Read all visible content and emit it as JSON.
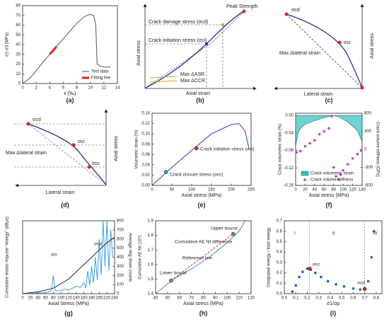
{
  "chart_data": [
    {
      "type": "line",
      "label": "(a)",
      "xlabel": "ε (‰)",
      "ylabel": "σ1-σ3 (MPa)",
      "xlim": [
        0,
        14
      ],
      "xticks": [
        0,
        2,
        4,
        6,
        8,
        10,
        12,
        14
      ],
      "ylim": [
        0,
        80
      ],
      "yticks": [
        0,
        10,
        20,
        30,
        40,
        50,
        60,
        70,
        80
      ],
      "legend": "lower right",
      "series": [
        {
          "name": "Test data",
          "color": "#555555",
          "x": [
            0,
            1,
            2,
            3,
            4,
            5,
            6,
            7,
            8,
            9,
            9.5,
            10,
            10.5,
            10.8,
            11,
            11.5,
            12,
            13
          ],
          "values": [
            0,
            5,
            13,
            22,
            30,
            38,
            46,
            54,
            62,
            68,
            70,
            71,
            70,
            60,
            20,
            18,
            17,
            17
          ]
        },
        {
          "name": "Fitting line",
          "color": "#e02020",
          "width": 3,
          "x": [
            4,
            5
          ],
          "values": [
            30,
            38
          ]
        }
      ]
    },
    {
      "type": "diagram",
      "label": "(b)",
      "texts": [
        "Peak Strength",
        "Crack damage stress (σcd)",
        "Crack initiation stress (σci)",
        "Axial stress",
        "Axial strain",
        "Max ΔASR",
        "Max ΔCCR"
      ]
    },
    {
      "type": "diagram",
      "label": "(c)",
      "texts": [
        "σcd",
        "σci",
        "Max Δlateral strain",
        "Axial stress",
        "Lateral strain"
      ]
    },
    {
      "type": "diagram",
      "label": "(d)",
      "texts": [
        "σcd",
        "σci",
        "σcc",
        "Max Δlateral strain",
        "Axial stress",
        "Lateral strain"
      ]
    },
    {
      "type": "line",
      "label": "(e)",
      "xlabel": "Axial stress (MPa)",
      "ylabel": "Volumetric strain (%)",
      "xlim": [
        0,
        250
      ],
      "xticks": [
        0,
        50,
        100,
        150,
        200,
        250
      ],
      "ylim": [
        0,
        0.14
      ],
      "yticks": [
        {
          "value": 0,
          "label": "0.00"
        },
        0.02,
        0.04,
        0.06,
        0.08,
        {
          "value": 0.1,
          "label": "0.10"
        },
        0.12,
        0.14
      ],
      "series": [
        {
          "color": "#2040c0",
          "x": [
            0,
            50,
            100,
            150,
            200,
            220,
            235,
            245
          ],
          "values": [
            0,
            0.035,
            0.068,
            0.1,
            0.118,
            0.12,
            0.105,
            0.07
          ]
        }
      ],
      "markers": {
        "x": [
          35,
          112
        ],
        "values": [
          0.026,
          0.072
        ],
        "colors": [
          "#20a080",
          "#e02020"
        ]
      },
      "annotations": [
        "Crack initiation stress (σci)",
        "Crack closure stress (σcc)"
      ]
    },
    {
      "type": "line",
      "label": "(f)",
      "xlabel": "Axial stress (MPa)",
      "ylabel": "Crack volumetric strain (%)",
      "y2label": "Crack volume stiffness (GPa)",
      "xlim": [
        0,
        140
      ],
      "xticks": [
        0,
        20,
        40,
        60,
        80,
        100,
        120,
        140
      ],
      "ylim": [
        -0.16,
        0.005
      ],
      "yticks": [
        -0.16,
        -0.12,
        -0.08,
        -0.04,
        {
          "value": 0,
          "label": "0.00"
        }
      ],
      "y2lim": [
        -600,
        600
      ],
      "y2ticks": [
        -600,
        -300,
        0,
        300,
        600
      ],
      "legend": "bottom",
      "series": [
        {
          "name": "Crack volumetric strain",
          "kind": "area",
          "color": "#30c0c0",
          "x": [
            0,
            5,
            10,
            20,
            40,
            60,
            75,
            80,
            90,
            110,
            130,
            140
          ],
          "values": [
            -0.07,
            -0.04,
            -0.03,
            -0.02,
            -0.012,
            -0.005,
            -0.001,
            0,
            -0.003,
            -0.015,
            -0.035,
            -0.06
          ]
        },
        {
          "name": "Crack volume stiffness",
          "kind": "scatter",
          "axis": "y2",
          "color": "#c040c0",
          "x": [
            2,
            10,
            20,
            30,
            40,
            50,
            60,
            70,
            76,
            80,
            85,
            90,
            95,
            100,
            110,
            120,
            130,
            138
          ],
          "values": [
            -50,
            -30,
            50,
            100,
            150,
            250,
            300,
            350,
            550,
            -300,
            -450,
            -500,
            -420,
            -350,
            -250,
            -150,
            -80,
            -20
          ]
        }
      ]
    },
    {
      "type": "line",
      "label": "(g)",
      "xlabel": "Axial Stress (MPa)",
      "ylabel": "Cumulative elastic impulse \"energy\" (dBμs)",
      "y2label": "Average ring down counts",
      "xlim": [
        0,
        240
      ],
      "xticks": [
        0,
        20,
        40,
        60,
        80,
        100,
        120,
        140,
        160,
        180,
        200,
        220,
        240
      ],
      "y2lim": [
        0,
        800
      ],
      "y2ticks": [
        0,
        100,
        200,
        300,
        400,
        500,
        600,
        700,
        800
      ],
      "series": [
        {
          "axis": "y2",
          "color": "#40a0e0",
          "x": [
            0,
            10,
            20,
            30,
            40,
            50,
            60,
            70,
            75,
            80,
            85,
            90,
            100,
            110,
            120,
            130,
            140,
            150,
            160,
            165,
            170,
            175,
            180,
            185,
            190,
            195,
            200,
            205,
            210,
            215,
            220,
            225,
            230,
            235
          ],
          "values": [
            0,
            2,
            3,
            5,
            8,
            10,
            15,
            20,
            30,
            200,
            40,
            30,
            35,
            50,
            40,
            60,
            80,
            70,
            120,
            60,
            250,
            90,
            300,
            120,
            400,
            150,
            600,
            200,
            800,
            300,
            800,
            250,
            700,
            400
          ]
        },
        {
          "axis": "y2",
          "color": "#222222",
          "x": [
            0,
            40,
            80,
            120,
            160,
            180,
            200,
            220,
            240
          ],
          "values": [
            0,
            20,
            60,
            160,
            320,
            400,
            480,
            560,
            620
          ]
        }
      ],
      "annotations": [
        "σci",
        "σcd"
      ]
    },
    {
      "type": "line",
      "label": "(h)",
      "xlabel": "Axial stress (MPa)",
      "ylabel": "Cumulative AE hit (10⁵)",
      "xlim": [
        40,
        120
      ],
      "xticks": [
        40,
        50,
        60,
        70,
        80,
        90,
        100,
        110,
        120
      ],
      "ylim": [
        1.4,
        1.9
      ],
      "yticks": [
        1.4,
        1.5,
        1.6,
        1.7,
        1.8,
        1.9
      ],
      "series": [
        {
          "color": "#3080e0",
          "x": [
            40,
            55,
            70,
            85,
            100,
            110,
            115
          ],
          "values": [
            1.4,
            1.5,
            1.57,
            1.65,
            1.75,
            1.83,
            1.9
          ]
        },
        {
          "kind": "dashed",
          "color": "#e02020",
          "x": [
            53,
            105
          ],
          "values": [
            1.49,
            1.81
          ]
        }
      ],
      "markers": {
        "x": [
          53,
          105
        ],
        "values": [
          1.49,
          1.81
        ],
        "colors": [
          "#808080",
          "#808080"
        ]
      },
      "annotations": [
        "Upper bound",
        "Cumulative AE hit difference",
        "Reference line",
        "Lower bound"
      ]
    },
    {
      "type": "scatter",
      "label": "(i)",
      "xlabel": "σ1/σp",
      "ylabel": "Dissipated energy / total energy",
      "xlim": [
        0,
        0.85
      ],
      "xticks": [
        {
          "value": 0,
          "label": "0.0"
        },
        0.1,
        0.2,
        0.3,
        0.4,
        0.5,
        0.6,
        0.7,
        0.8
      ],
      "ylim": [
        0,
        0.7
      ],
      "yticks": [
        {
          "value": 0,
          "label": "0.0"
        },
        0.1,
        0.2,
        0.3,
        0.4,
        0.5,
        0.6,
        0.7
      ],
      "series": [
        {
          "kind": "scatter",
          "color": "#1060d0",
          "x": [
            0.07,
            0.1,
            0.13,
            0.16,
            0.2,
            0.23,
            0.27,
            0.32,
            0.38,
            0.45,
            0.52,
            0.6,
            0.66,
            0.7,
            0.73,
            0.76,
            0.78
          ],
          "values": [
            0.02,
            0.08,
            0.16,
            0.21,
            0.24,
            0.23,
            0.2,
            0.16,
            0.12,
            0.09,
            0.07,
            0.05,
            0.04,
            0.05,
            0.12,
            0.35,
            0.6
          ]
        }
      ],
      "markers": {
        "x": [
          0.22,
          0.7
        ],
        "values": [
          0.24,
          0.045
        ],
        "colors": [
          "#e02020",
          "#e02020"
        ],
        "vlines": true
      },
      "annotations": [
        "I",
        "II",
        "III",
        "σcc",
        "σcd"
      ]
    }
  ]
}
